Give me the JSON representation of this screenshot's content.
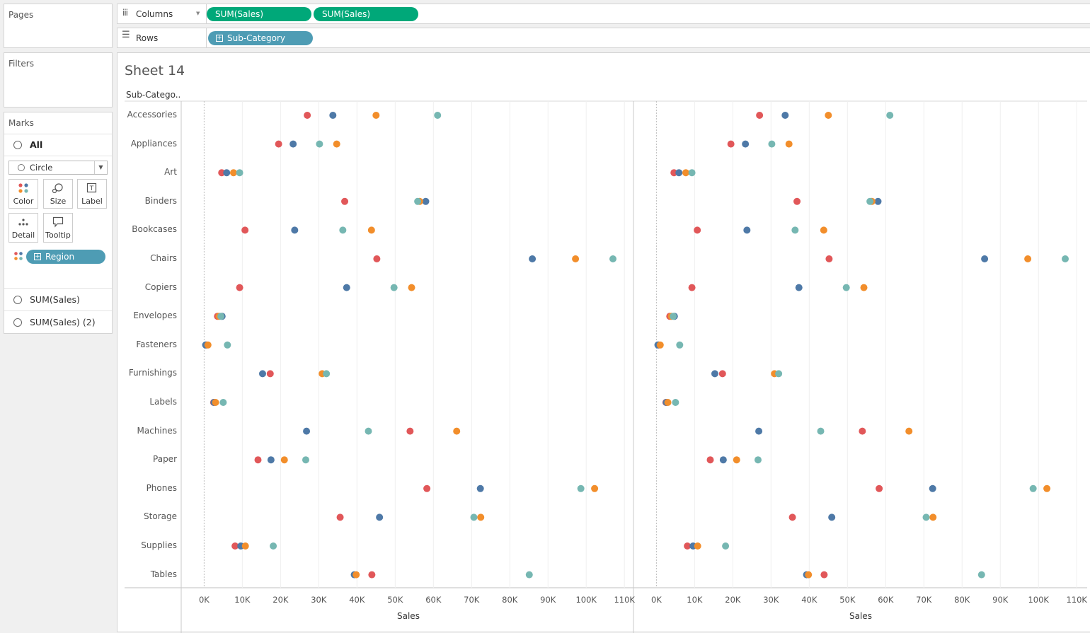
{
  "pages": {
    "title": "Pages"
  },
  "filters": {
    "title": "Filters"
  },
  "marks": {
    "title": "Marks",
    "all_label": "All",
    "mark_type": "Circle",
    "cards": [
      "Color",
      "Size",
      "Label",
      "Detail",
      "Tooltip"
    ],
    "color_pill": "Region",
    "sum_rows": [
      "SUM(Sales)",
      "SUM(Sales) (2)"
    ]
  },
  "shelves": {
    "columns_label": "Columns",
    "columns_pills": [
      "SUM(Sales)",
      "SUM(Sales)"
    ],
    "rows_label": "Rows",
    "rows_pill": "Sub-Category"
  },
  "sheet": {
    "title": "Sheet 14",
    "row_header": "Sub-Catego..",
    "x_label": "Sales"
  },
  "colors": {
    "red": "#e15759",
    "blue": "#4e79a7",
    "orange": "#f28e2b",
    "teal": "#76b7b2",
    "green_pill": "#00a879",
    "blue_pill": "#4e9cb4"
  },
  "chart_data": {
    "type": "scatter",
    "xlabel": "Sales",
    "xlim": [
      -6000,
      112000
    ],
    "x_ticks": [
      "0K",
      "10K",
      "20K",
      "30K",
      "40K",
      "50K",
      "60K",
      "70K",
      "80K",
      "90K",
      "100K",
      "110K"
    ],
    "categories": [
      "Accessories",
      "Appliances",
      "Art",
      "Binders",
      "Bookcases",
      "Chairs",
      "Copiers",
      "Envelopes",
      "Fasteners",
      "Furnishings",
      "Labels",
      "Machines",
      "Paper",
      "Phones",
      "Storage",
      "Supplies",
      "Tables"
    ],
    "series": [
      {
        "color": "#e15759",
        "values": [
          27000,
          19500,
          4600,
          36800,
          10700,
          45200,
          9300,
          3500,
          600,
          17300,
          2500,
          53900,
          14100,
          58300,
          35600,
          8100,
          43900
        ]
      },
      {
        "color": "#4e79a7",
        "values": [
          33700,
          23300,
          5900,
          58000,
          23700,
          85900,
          37300,
          4700,
          400,
          15300,
          2600,
          26800,
          17500,
          72300,
          45900,
          9600,
          39300
        ]
      },
      {
        "color": "#f28e2b",
        "values": [
          45000,
          34700,
          7700,
          56400,
          43800,
          97200,
          54300,
          3900,
          1000,
          30900,
          3000,
          66100,
          21000,
          102200,
          72400,
          10800,
          39800
        ]
      },
      {
        "color": "#76b7b2",
        "values": [
          61100,
          30200,
          9300,
          55900,
          36300,
          107000,
          49700,
          4400,
          6100,
          32000,
          5000,
          43000,
          26600,
          98600,
          70600,
          18100,
          85100
        ]
      }
    ]
  }
}
